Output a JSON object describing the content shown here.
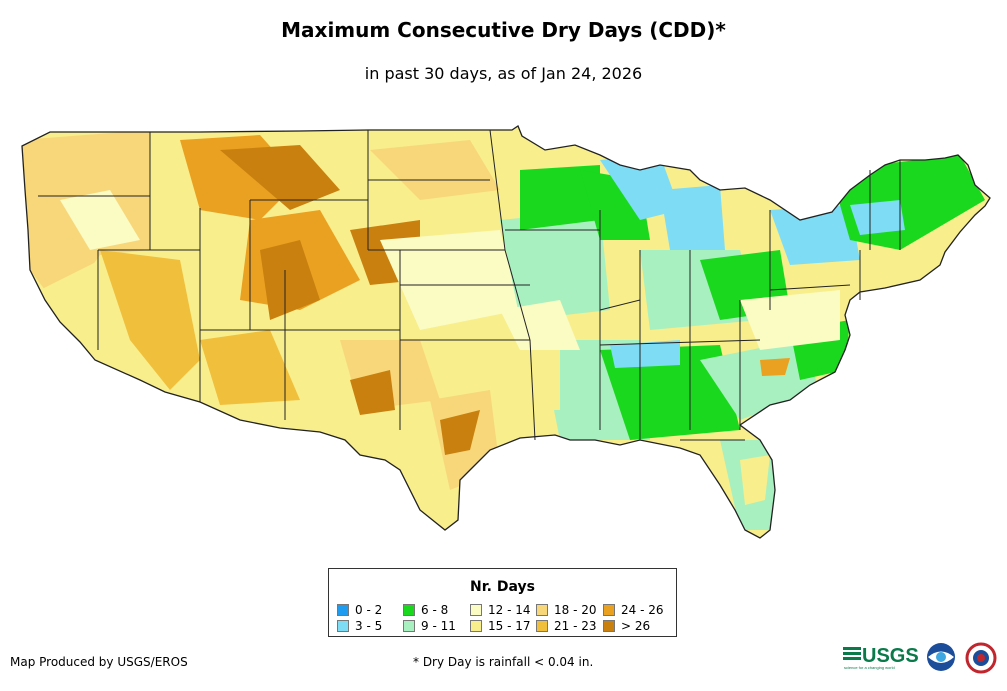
{
  "title": "Maximum Consecutive Dry Days (CDD)*",
  "subtitle": "in past 30 days, as of Jan 24, 2026",
  "legend": {
    "title": "Nr. Days",
    "items": [
      {
        "label": "0 - 2",
        "color": "#1f9bf0"
      },
      {
        "label": "3 - 5",
        "color": "#7fdcf5"
      },
      {
        "label": "6 - 8",
        "color": "#19d81e"
      },
      {
        "label": "9 - 11",
        "color": "#a8f0c0"
      },
      {
        "label": "12 - 14",
        "color": "#fbfbc4"
      },
      {
        "label": "15 - 17",
        "color": "#f8ee8c"
      },
      {
        "label": "18 - 20",
        "color": "#f7d77a"
      },
      {
        "label": "21 - 23",
        "color": "#f0bf3c"
      },
      {
        "label": "24 - 26",
        "color": "#eaa020"
      },
      {
        "label": "> 26",
        "color": "#c9800e"
      }
    ]
  },
  "credit": "Map Produced by USGS/EROS",
  "footnote": "* Dry Day is rainfall < 0.04 in.",
  "logos": {
    "usgs": "USGS",
    "usgs_tagline": "science for a changing world"
  }
}
